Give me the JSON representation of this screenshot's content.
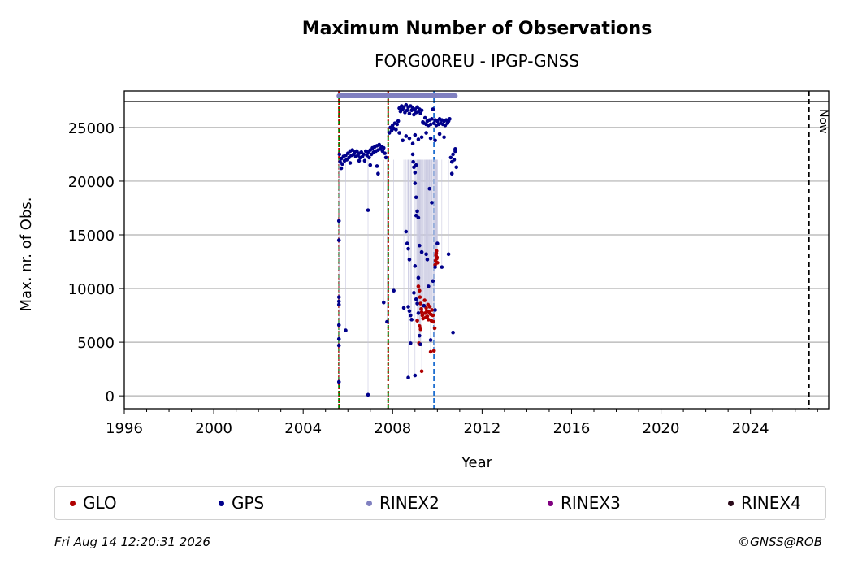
{
  "chart_data": {
    "type": "scatter",
    "title": "Maximum Number of Observations",
    "subtitle": "FORG00REU - IPGP-GNSS",
    "xlabel": "Year",
    "ylabel": "Max. nr. of Obs.",
    "xlim": [
      1996,
      2027.5
    ],
    "ylim": [
      -1200,
      28400
    ],
    "xticks": [
      1996,
      2000,
      2004,
      2008,
      2012,
      2016,
      2020,
      2024
    ],
    "yticks": [
      0,
      5000,
      10000,
      15000,
      20000,
      25000
    ],
    "grid": "horizontal",
    "now_label": "Now",
    "now_year": 2026.62,
    "event_lines": [
      {
        "x": 2005.6,
        "color": "#008000",
        "style": "dashed"
      },
      {
        "x": 2005.6,
        "color": "#cc0000",
        "style": "dotted"
      },
      {
        "x": 2007.8,
        "color": "#008000",
        "style": "dashed"
      },
      {
        "x": 2007.8,
        "color": "#cc0000",
        "style": "dotted"
      },
      {
        "x": 2009.85,
        "color": "#1f6fd0",
        "style": "dashed"
      }
    ],
    "rinex2_bar": {
      "x_start": 2005.6,
      "x_end": 2010.8,
      "y": 29000
    },
    "series": [
      {
        "name": "GLO",
        "color": "#b00000",
        "points": [
          [
            2009.15,
            10200
          ],
          [
            2009.2,
            9800
          ],
          [
            2009.22,
            9200
          ],
          [
            2009.25,
            8600
          ],
          [
            2009.28,
            8100
          ],
          [
            2009.3,
            7800
          ],
          [
            2009.33,
            7500
          ],
          [
            2009.36,
            7200
          ],
          [
            2009.4,
            8400
          ],
          [
            2009.43,
            8900
          ],
          [
            2009.45,
            7700
          ],
          [
            2009.48,
            7300
          ],
          [
            2009.5,
            8200
          ],
          [
            2009.53,
            7900
          ],
          [
            2009.55,
            7400
          ],
          [
            2009.58,
            8500
          ],
          [
            2009.6,
            7100
          ],
          [
            2009.63,
            7800
          ],
          [
            2009.66,
            8300
          ],
          [
            2009.7,
            7600
          ],
          [
            2009.73,
            7000
          ],
          [
            2009.76,
            8000
          ],
          [
            2009.8,
            7500
          ],
          [
            2009.82,
            6900
          ],
          [
            2009.2,
            6500
          ],
          [
            2009.25,
            6200
          ],
          [
            2009.1,
            7000
          ],
          [
            2009.18,
            4900
          ],
          [
            2009.22,
            4800
          ],
          [
            2009.3,
            2300
          ],
          [
            2009.7,
            4100
          ],
          [
            2009.85,
            4200
          ],
          [
            2009.88,
            6300
          ],
          [
            2009.9,
            12200
          ],
          [
            2009.92,
            12600
          ],
          [
            2009.94,
            13100
          ],
          [
            2009.96,
            13500
          ],
          [
            2009.98,
            12900
          ],
          [
            2010.0,
            12400
          ],
          [
            2009.95,
            13300
          ],
          [
            2009.97,
            12800
          ]
        ]
      },
      {
        "name": "GPS",
        "color": "#00008b",
        "points": [
          [
            2005.62,
            22500
          ],
          [
            2005.65,
            21800
          ],
          [
            2005.7,
            22100
          ],
          [
            2005.75,
            21600
          ],
          [
            2005.8,
            22300
          ],
          [
            2005.85,
            21900
          ],
          [
            2005.9,
            22400
          ],
          [
            2005.95,
            22000
          ],
          [
            2006.0,
            22600
          ],
          [
            2006.05,
            22200
          ],
          [
            2006.1,
            22800
          ],
          [
            2006.15,
            22400
          ],
          [
            2006.2,
            22900
          ],
          [
            2006.25,
            22500
          ],
          [
            2006.3,
            22700
          ],
          [
            2006.35,
            22300
          ],
          [
            2006.4,
            22800
          ],
          [
            2006.45,
            22400
          ],
          [
            2006.5,
            22600
          ],
          [
            2006.55,
            22200
          ],
          [
            2006.6,
            22700
          ],
          [
            2006.65,
            22300
          ],
          [
            2006.7,
            22500
          ],
          [
            2006.75,
            21900
          ],
          [
            2006.8,
            22800
          ],
          [
            2006.85,
            22400
          ],
          [
            2006.9,
            22700
          ],
          [
            2006.95,
            22200
          ],
          [
            2007.0,
            22900
          ],
          [
            2007.05,
            22500
          ],
          [
            2007.1,
            23100
          ],
          [
            2007.15,
            22700
          ],
          [
            2007.2,
            23200
          ],
          [
            2007.25,
            22800
          ],
          [
            2007.3,
            23300
          ],
          [
            2007.35,
            22900
          ],
          [
            2007.4,
            23400
          ],
          [
            2007.45,
            23000
          ],
          [
            2007.5,
            23200
          ],
          [
            2007.55,
            22800
          ],
          [
            2007.6,
            23100
          ],
          [
            2007.65,
            22600
          ],
          [
            2007.7,
            22200
          ],
          [
            2005.7,
            21200
          ],
          [
            2006.1,
            21700
          ],
          [
            2006.5,
            21900
          ],
          [
            2007.0,
            21500
          ],
          [
            2007.3,
            21400
          ],
          [
            2007.35,
            20700
          ],
          [
            2007.85,
            24500
          ],
          [
            2007.9,
            25000
          ],
          [
            2007.95,
            24700
          ],
          [
            2008.0,
            25200
          ],
          [
            2008.05,
            24900
          ],
          [
            2008.1,
            25400
          ],
          [
            2008.15,
            24800
          ],
          [
            2008.2,
            25300
          ],
          [
            2008.25,
            25600
          ],
          [
            2008.3,
            26800
          ],
          [
            2008.35,
            26500
          ],
          [
            2008.4,
            27000
          ],
          [
            2008.45,
            26700
          ],
          [
            2008.5,
            26900
          ],
          [
            2008.55,
            26400
          ],
          [
            2008.6,
            27100
          ],
          [
            2008.65,
            26600
          ],
          [
            2008.7,
            26900
          ],
          [
            2008.75,
            26300
          ],
          [
            2008.8,
            27000
          ],
          [
            2008.85,
            26600
          ],
          [
            2008.9,
            26800
          ],
          [
            2008.95,
            26200
          ],
          [
            2009.0,
            26700
          ],
          [
            2009.05,
            26400
          ],
          [
            2009.1,
            26900
          ],
          [
            2009.15,
            26500
          ],
          [
            2009.2,
            26700
          ],
          [
            2009.25,
            26300
          ],
          [
            2009.3,
            26600
          ],
          [
            2009.35,
            25500
          ],
          [
            2009.4,
            25400
          ],
          [
            2009.45,
            25900
          ],
          [
            2009.5,
            25300
          ],
          [
            2009.55,
            25600
          ],
          [
            2009.6,
            25200
          ],
          [
            2009.65,
            25700
          ],
          [
            2009.7,
            25300
          ],
          [
            2009.75,
            25800
          ],
          [
            2009.8,
            26700
          ],
          [
            2009.85,
            25400
          ],
          [
            2009.9,
            25700
          ],
          [
            2009.95,
            25200
          ],
          [
            2010.0,
            25600
          ],
          [
            2010.05,
            25300
          ],
          [
            2010.1,
            25800
          ],
          [
            2010.15,
            25400
          ],
          [
            2010.2,
            25700
          ],
          [
            2010.25,
            25300
          ],
          [
            2010.3,
            25600
          ],
          [
            2010.35,
            25200
          ],
          [
            2010.4,
            25700
          ],
          [
            2010.45,
            25400
          ],
          [
            2010.5,
            25600
          ],
          [
            2010.55,
            25800
          ],
          [
            2010.6,
            22200
          ],
          [
            2010.65,
            21800
          ],
          [
            2010.7,
            22500
          ],
          [
            2010.75,
            22000
          ],
          [
            2010.8,
            22800
          ],
          [
            2010.85,
            21300
          ],
          [
            2010.65,
            20700
          ],
          [
            2010.8,
            23000
          ],
          [
            2008.3,
            24500
          ],
          [
            2008.45,
            23800
          ],
          [
            2008.6,
            24200
          ],
          [
            2008.75,
            24000
          ],
          [
            2008.9,
            23500
          ],
          [
            2009.0,
            24300
          ],
          [
            2009.15,
            23900
          ],
          [
            2009.3,
            24100
          ],
          [
            2009.5,
            24500
          ],
          [
            2009.7,
            24000
          ],
          [
            2009.9,
            23800
          ],
          [
            2010.1,
            24400
          ],
          [
            2010.3,
            24100
          ],
          [
            2005.6,
            16300
          ],
          [
            2005.6,
            14500
          ],
          [
            2005.6,
            9200
          ],
          [
            2005.6,
            8800
          ],
          [
            2005.6,
            8500
          ],
          [
            2005.6,
            6600
          ],
          [
            2005.6,
            5300
          ],
          [
            2005.6,
            4700
          ],
          [
            2005.6,
            1300
          ],
          [
            2005.9,
            6100
          ],
          [
            2006.9,
            17300
          ],
          [
            2006.9,
            100
          ],
          [
            2007.6,
            8700
          ],
          [
            2007.75,
            6900
          ],
          [
            2008.05,
            9800
          ],
          [
            2008.6,
            15300
          ],
          [
            2008.65,
            14200
          ],
          [
            2008.7,
            13700
          ],
          [
            2008.75,
            12700
          ],
          [
            2008.7,
            8300
          ],
          [
            2008.75,
            7900
          ],
          [
            2008.8,
            7500
          ],
          [
            2008.85,
            7100
          ],
          [
            2008.9,
            22500
          ],
          [
            2008.92,
            21800
          ],
          [
            2008.95,
            21300
          ],
          [
            2009.0,
            20800
          ],
          [
            2009.05,
            21500
          ],
          [
            2009.0,
            19800
          ],
          [
            2009.05,
            18500
          ],
          [
            2009.1,
            17200
          ],
          [
            2009.15,
            16600
          ],
          [
            2009.05,
            16800
          ],
          [
            2009.0,
            12100
          ],
          [
            2009.15,
            11000
          ],
          [
            2008.95,
            9600
          ],
          [
            2009.05,
            9000
          ],
          [
            2009.1,
            8600
          ],
          [
            2009.15,
            7700
          ],
          [
            2009.2,
            5600
          ],
          [
            2009.25,
            4800
          ],
          [
            2008.8,
            4900
          ],
          [
            2008.7,
            1700
          ],
          [
            2009.0,
            1900
          ],
          [
            2009.2,
            14000
          ],
          [
            2009.3,
            13400
          ],
          [
            2009.5,
            13200
          ],
          [
            2009.55,
            12700
          ],
          [
            2009.65,
            19300
          ],
          [
            2009.75,
            18000
          ],
          [
            2009.6,
            10200
          ],
          [
            2009.8,
            10700
          ],
          [
            2009.9,
            8000
          ],
          [
            2009.9,
            12000
          ],
          [
            2010.0,
            14200
          ],
          [
            2010.2,
            12000
          ],
          [
            2010.5,
            13200
          ],
          [
            2010.7,
            5900
          ],
          [
            2009.7,
            5200
          ],
          [
            2009.4,
            8400
          ],
          [
            2008.5,
            8200
          ]
        ]
      },
      {
        "name": "RINEX2",
        "color": "#8080c0",
        "points": []
      },
      {
        "name": "RINEX3",
        "color": "#800080",
        "points": []
      },
      {
        "name": "RINEX4",
        "color": "#2a0a1a",
        "points": []
      }
    ]
  },
  "legend": {
    "items": [
      {
        "label": "GLO",
        "color": "#b00000"
      },
      {
        "label": "GPS",
        "color": "#00008b"
      },
      {
        "label": "RINEX2",
        "color": "#8080c0"
      },
      {
        "label": "RINEX3",
        "color": "#800080"
      },
      {
        "label": "RINEX4",
        "color": "#2a0a1a"
      }
    ]
  },
  "footer": {
    "timestamp": "Fri Aug 14 12:20:31 2026",
    "copyright": "©GNSS@ROB"
  }
}
